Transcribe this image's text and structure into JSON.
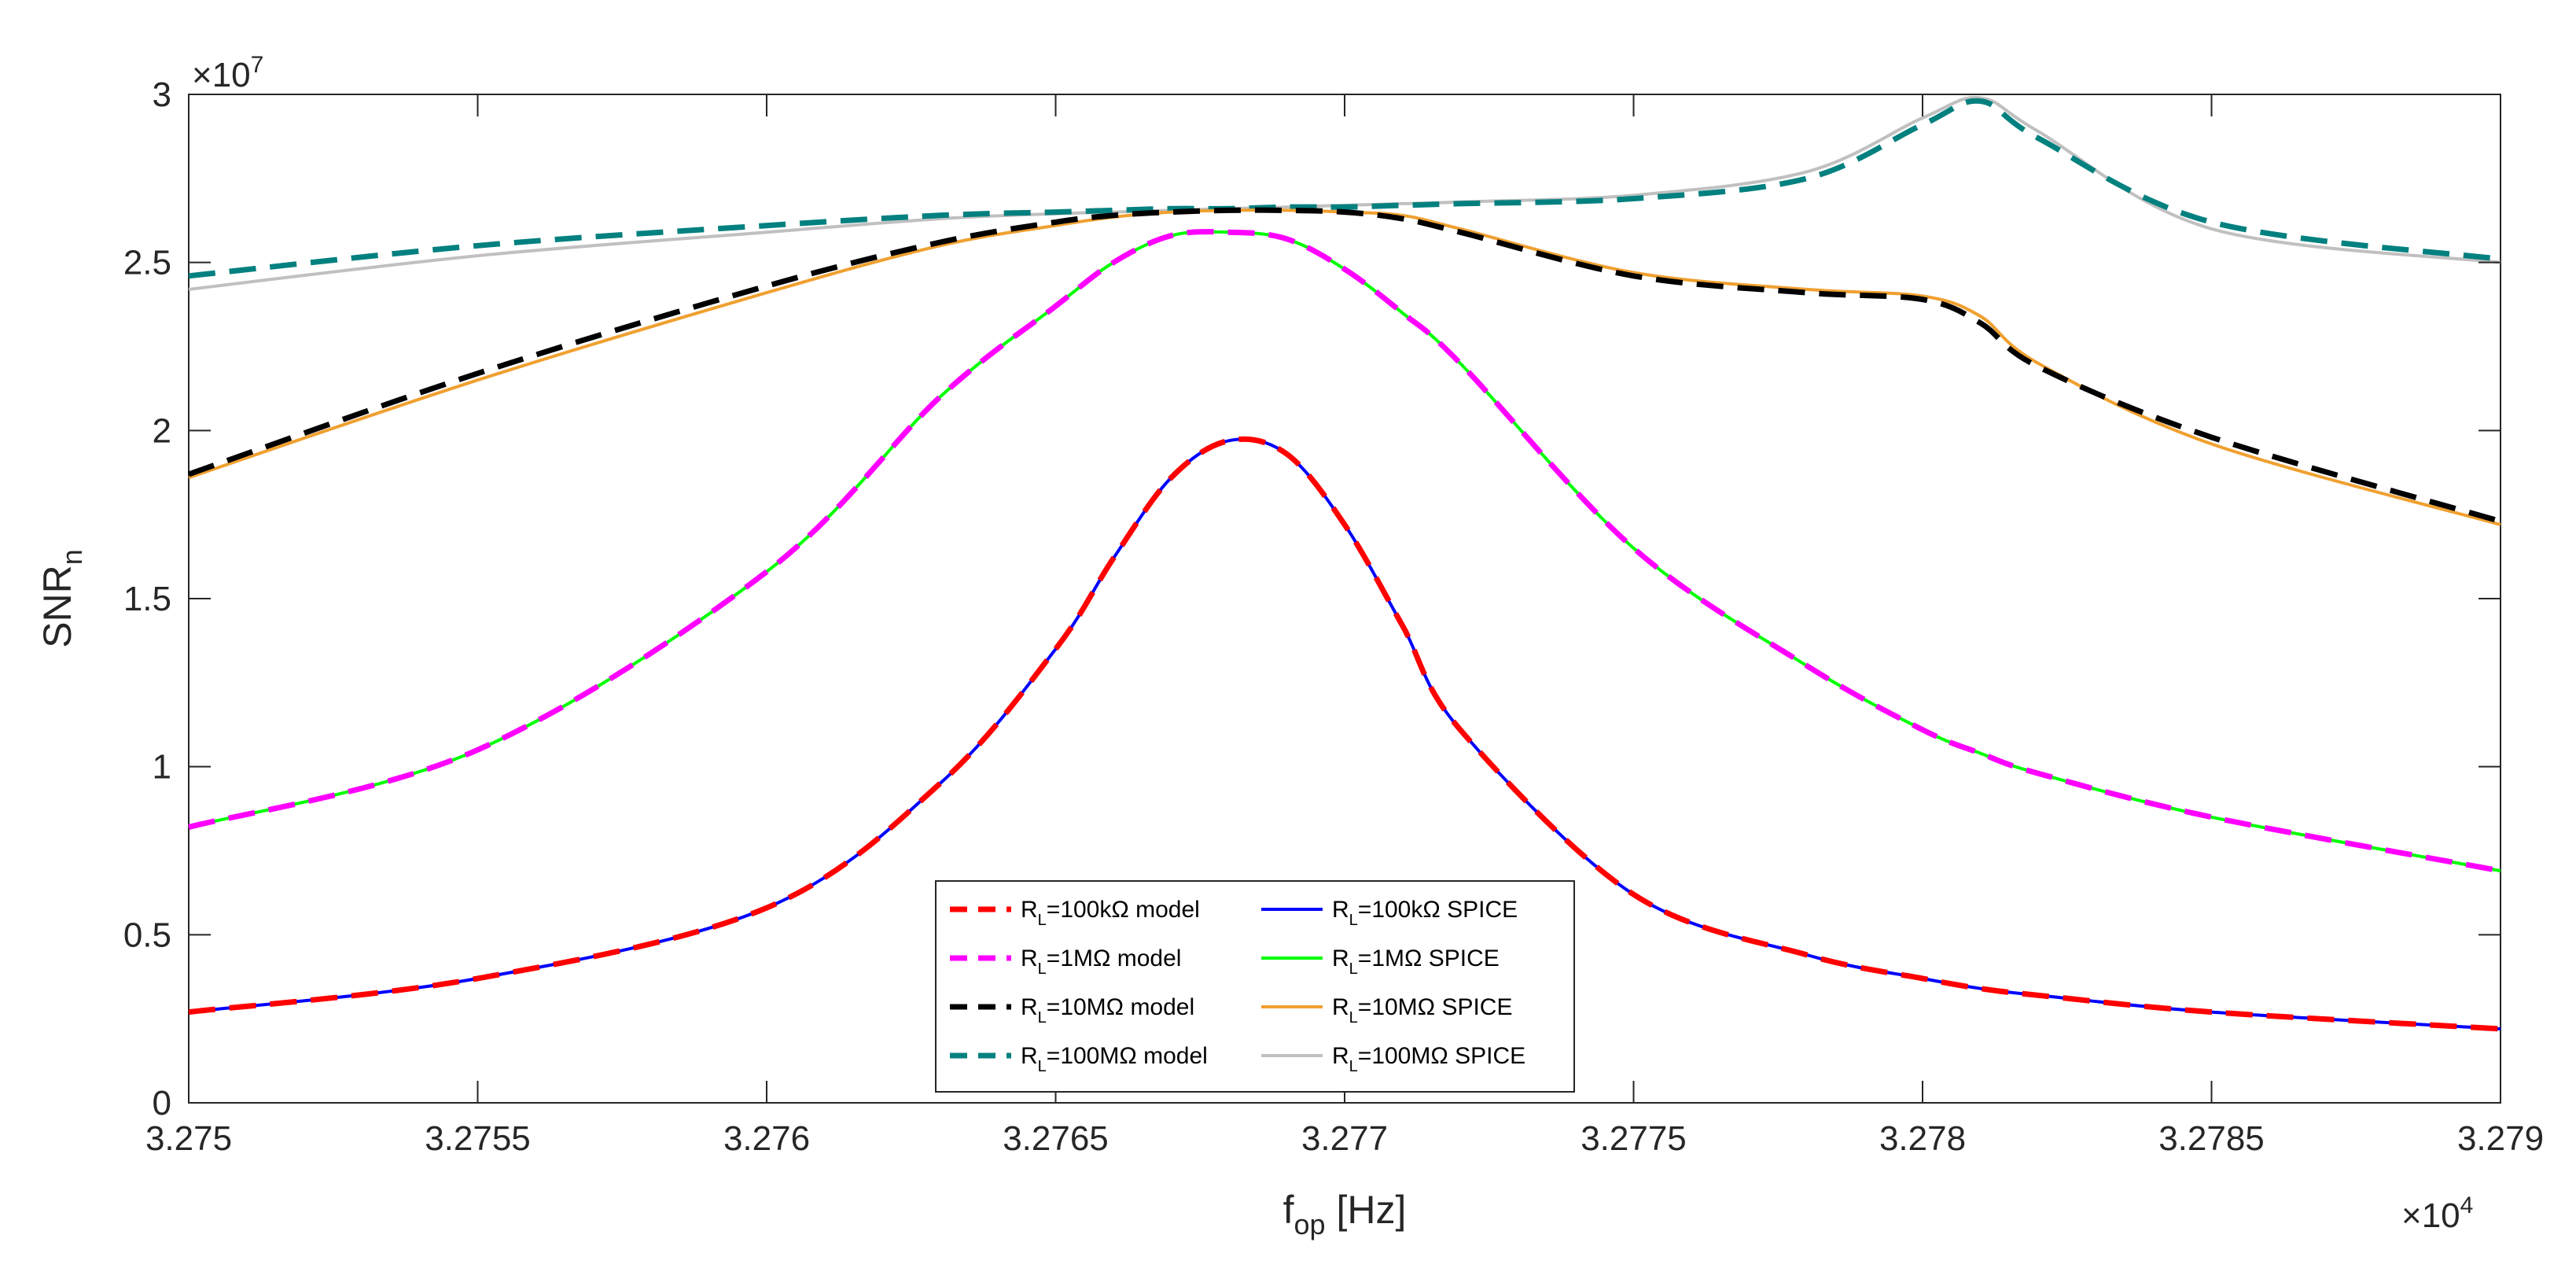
{
  "chart_data": {
    "type": "line",
    "title": "",
    "xlabel": "f",
    "xlabel_sub": "op",
    "xlabel_rest": " [Hz]",
    "ylabel": "SNR",
    "ylabel_sub": "n",
    "x_exponent": "×10",
    "x_exponent_power": "4",
    "y_exponent": "×10",
    "y_exponent_power": "7",
    "xlim": [
      3.275,
      3.279
    ],
    "ylim": [
      0,
      3
    ],
    "x_ticks": [
      3.275,
      3.2755,
      3.276,
      3.2765,
      3.277,
      3.2775,
      3.278,
      3.2785,
      3.279
    ],
    "x_tick_labels": [
      "3.275",
      "3.2755",
      "3.276",
      "3.2765",
      "3.277",
      "3.2775",
      "3.278",
      "3.2785",
      "3.279"
    ],
    "y_ticks": [
      0,
      0.5,
      1,
      1.5,
      2,
      2.5,
      3
    ],
    "y_tick_labels": [
      "0",
      "0.5",
      "1",
      "1.5",
      "2",
      "2.5",
      "3"
    ],
    "grid": false,
    "legend_position": "bottom-center",
    "x": [
      3.275,
      3.2755,
      3.276,
      3.2763,
      3.2765,
      3.2766,
      3.2767,
      3.2768,
      3.2769,
      3.277,
      3.2771,
      3.2772,
      3.2775,
      3.2778,
      3.278,
      3.2781,
      3.2782,
      3.2785,
      3.279
    ],
    "series": [
      {
        "name": "RL=100kΩ model",
        "legend_main": "R",
        "legend_sub": "L",
        "legend_rest": "=100kΩ model",
        "color": "#ff0000",
        "dashed": true,
        "values": [
          0.27,
          0.37,
          0.58,
          0.95,
          1.35,
          1.62,
          1.86,
          1.97,
          1.93,
          1.72,
          1.42,
          1.11,
          0.62,
          0.44,
          0.37,
          0.34,
          0.32,
          0.27,
          0.22
        ]
      },
      {
        "name": "RL=1MΩ model",
        "legend_main": "R",
        "legend_sub": "L",
        "legend_rest": "=1MΩ model",
        "color": "#ff00ff",
        "dashed": true,
        "values": [
          0.82,
          1.05,
          1.58,
          2.1,
          2.37,
          2.5,
          2.58,
          2.59,
          2.57,
          2.48,
          2.35,
          2.2,
          1.65,
          1.3,
          1.11,
          1.04,
          0.98,
          0.85,
          0.69
        ]
      },
      {
        "name": "RL=10MΩ model",
        "legend_main": "R",
        "legend_sub": "L",
        "legend_rest": "=10MΩ model",
        "color": "#000000",
        "dashed": true,
        "values": [
          1.87,
          2.17,
          2.43,
          2.56,
          2.62,
          2.64,
          2.65,
          2.655,
          2.655,
          2.65,
          2.63,
          2.59,
          2.46,
          2.41,
          2.39,
          2.32,
          2.19,
          1.98,
          1.73
        ]
      },
      {
        "name": "RL=100MΩ model",
        "legend_main": "R",
        "legend_sub": "L",
        "legend_rest": "=100MΩ model",
        "color": "#00807f",
        "dashed": true,
        "values": [
          2.46,
          2.55,
          2.61,
          2.64,
          2.65,
          2.655,
          2.66,
          2.66,
          2.665,
          2.665,
          2.67,
          2.675,
          2.69,
          2.75,
          2.91,
          2.98,
          2.87,
          2.62,
          2.51
        ]
      },
      {
        "name": "RL=100kΩ SPICE",
        "legend_main": "R",
        "legend_sub": "L",
        "legend_rest": "=100kΩ SPICE",
        "color": "#0000ff",
        "dashed": false,
        "values": [
          0.27,
          0.37,
          0.58,
          0.95,
          1.35,
          1.62,
          1.86,
          1.97,
          1.93,
          1.72,
          1.42,
          1.11,
          0.62,
          0.44,
          0.37,
          0.34,
          0.32,
          0.27,
          0.22
        ]
      },
      {
        "name": "RL=1MΩ SPICE",
        "legend_main": "R",
        "legend_sub": "L",
        "legend_rest": "=1MΩ SPICE",
        "color": "#00ff00",
        "dashed": false,
        "values": [
          0.82,
          1.05,
          1.58,
          2.1,
          2.37,
          2.5,
          2.58,
          2.59,
          2.57,
          2.48,
          2.35,
          2.2,
          1.65,
          1.3,
          1.11,
          1.04,
          0.98,
          0.85,
          0.69
        ]
      },
      {
        "name": "RL=10MΩ SPICE",
        "legend_main": "R",
        "legend_sub": "L",
        "legend_rest": "=10MΩ SPICE",
        "color": "#f0a030",
        "dashed": false,
        "values": [
          1.86,
          2.15,
          2.41,
          2.55,
          2.61,
          2.635,
          2.65,
          2.655,
          2.655,
          2.65,
          2.64,
          2.6,
          2.47,
          2.42,
          2.4,
          2.34,
          2.2,
          1.96,
          1.72
        ]
      },
      {
        "name": "RL=100MΩ SPICE",
        "legend_main": "R",
        "legend_sub": "L",
        "legend_rest": "=100MΩ SPICE",
        "color": "#c0c0c0",
        "dashed": false,
        "values": [
          2.42,
          2.52,
          2.59,
          2.63,
          2.645,
          2.65,
          2.655,
          2.66,
          2.665,
          2.67,
          2.675,
          2.68,
          2.7,
          2.77,
          2.93,
          2.99,
          2.89,
          2.6,
          2.5
        ]
      }
    ]
  }
}
